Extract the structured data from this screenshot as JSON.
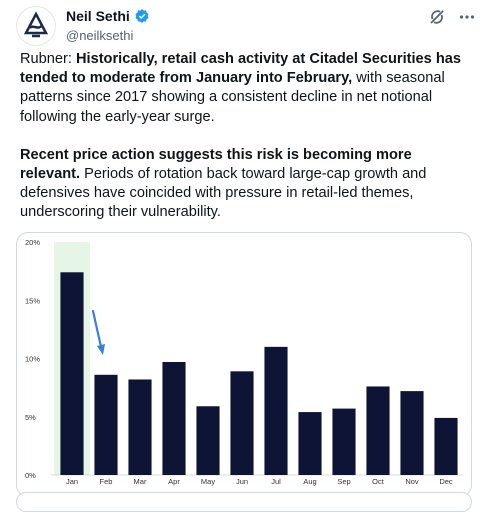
{
  "author": {
    "name": "Neil Sethi",
    "handle": "@neilksethi",
    "avatar_icon": "logo-icon",
    "verified_icon": "verified-badge-icon"
  },
  "header_actions": [
    {
      "icon": "grok-icon"
    },
    {
      "icon": "more-icon"
    }
  ],
  "post": {
    "p1_prefix": "Rubner: ",
    "p1_bold": "Historically, retail cash activity at Citadel Securities has tended to moderate from January into February,",
    "p1_rest": " with seasonal patterns since 2017 showing a consistent decline in net notional following the early-year surge.",
    "p2_bold": "Recent price action suggests this risk is becoming more relevant.",
    "p2_rest": " Periods of rotation back toward large-cap growth and defensives have coincided with pressure in retail-led themes, underscoring their vulnerability."
  },
  "chart_data": {
    "type": "bar",
    "categories": [
      "Jan",
      "Feb",
      "Mar",
      "Apr",
      "May",
      "Jun",
      "Jul",
      "Aug",
      "Sep",
      "Oct",
      "Nov",
      "Dec"
    ],
    "values": [
      17.4,
      8.6,
      8.2,
      9.7,
      5.9,
      8.9,
      11.0,
      5.4,
      5.7,
      7.6,
      7.2,
      4.9
    ],
    "y_ticks": [
      "0%",
      "5%",
      "10%",
      "15%",
      "20%"
    ],
    "ylim": [
      0,
      20
    ],
    "highlight_category": "Jan",
    "bar_color": "#0d1436",
    "highlight_color": "#e5f5e6",
    "arrow_color": "#3b7fd9",
    "grid": false
  }
}
